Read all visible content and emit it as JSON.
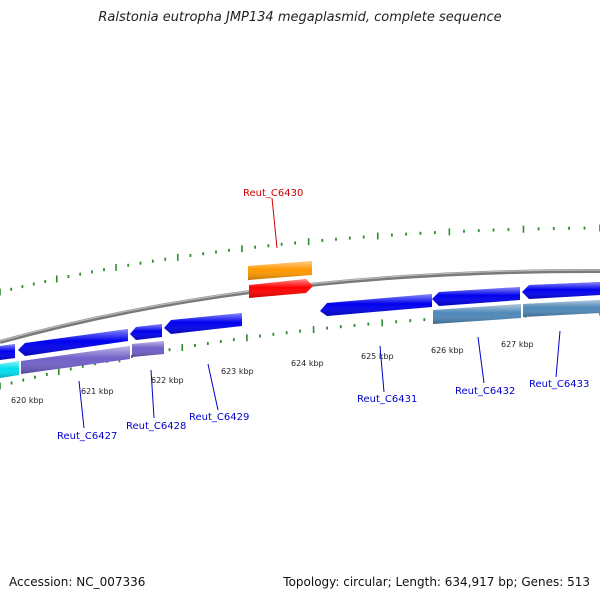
{
  "title": "Ralstonia eutropha JMP134 megaplasmid, complete sequence",
  "footer": {
    "accession": "Accession: NC_007336",
    "summary": "Topology: circular; Length: 634,917 bp; Genes: 513"
  },
  "colors": {
    "backbone": "#8c8c8c",
    "tick": "#2e8b2e",
    "blue_gene": "#0000ee",
    "purple_gene": "#7060c8",
    "steel_gene": "#4f88b8",
    "cyan_gene": "#00e0f0",
    "orange_gene": "#ff9800",
    "red_gene": "#ff0000",
    "label_blue": "#0000cc",
    "label_red": "#cc0000"
  },
  "ticks": [
    {
      "label": "620 kbp"
    },
    {
      "label": "621 kbp"
    },
    {
      "label": "622 kbp"
    },
    {
      "label": "623 kbp"
    },
    {
      "label": "624 kbp"
    },
    {
      "label": "625 kbp"
    },
    {
      "label": "626 kbp"
    },
    {
      "label": "627 kbp"
    }
  ],
  "genes": [
    {
      "name": "Reut_C6427",
      "color": "label_blue"
    },
    {
      "name": "Reut_C6428",
      "color": "label_blue"
    },
    {
      "name": "Reut_C6429",
      "color": "label_blue"
    },
    {
      "name": "Reut_C6430",
      "color": "label_red"
    },
    {
      "name": "Reut_C6431",
      "color": "label_blue"
    },
    {
      "name": "Reut_C6432",
      "color": "label_blue"
    },
    {
      "name": "Reut_C6433",
      "color": "label_blue"
    }
  ]
}
